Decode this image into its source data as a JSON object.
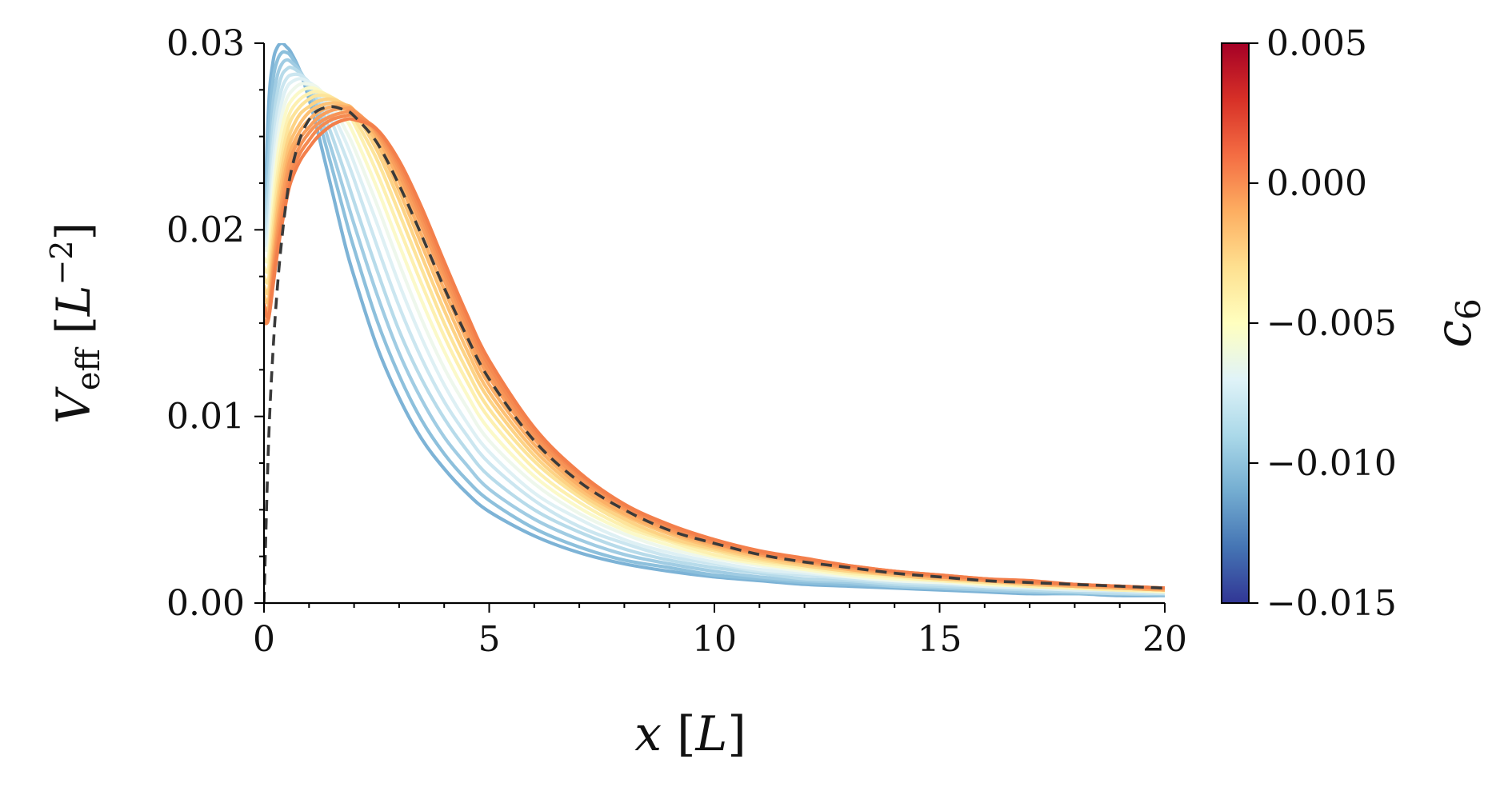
{
  "chart_data": {
    "type": "line",
    "xlabel": "x [L]",
    "ylabel": "V_eff [L^-2]",
    "xlim": [
      0,
      20
    ],
    "ylim": [
      0,
      0.03
    ],
    "x_ticks": [
      "0",
      "5",
      "10",
      "15",
      "20"
    ],
    "y_ticks": [
      "0.00",
      "0.01",
      "0.02",
      "0.03"
    ],
    "grid": false,
    "legend": "none",
    "colorbar": {
      "label": "c_6",
      "range": [
        -0.015,
        0.005
      ],
      "ticks": [
        "0.005",
        "0.000",
        "−0.005",
        "−0.010",
        "−0.015"
      ],
      "colormap": [
        "#313695",
        "#4575b4",
        "#74add1",
        "#abd9e9",
        "#e0f3f8",
        "#ffffbf",
        "#fee090",
        "#fdae61",
        "#f46d43",
        "#d73027",
        "#a50026"
      ]
    },
    "x": [
      0,
      0.1,
      0.2,
      0.3,
      0.4,
      0.5,
      0.6,
      0.8,
      1.0,
      1.2,
      1.5,
      1.8,
      2.0,
      2.5,
      3.0,
      3.5,
      4.0,
      4.5,
      5.0,
      6.0,
      7.0,
      8.0,
      9.0,
      10.0,
      11.0,
      12.0,
      13.0,
      14.0,
      15.0,
      16.0,
      17.0,
      18.0,
      19.0,
      20.0
    ],
    "series": [
      {
        "c6": -0.0095,
        "color": "#7db3d6",
        "values": [
          0.019,
          0.0265,
          0.029,
          0.0298,
          0.03,
          0.0298,
          0.0295,
          0.0285,
          0.027,
          0.0252,
          0.0222,
          0.0192,
          0.0175,
          0.0138,
          0.011,
          0.0088,
          0.0072,
          0.0059,
          0.0049,
          0.0036,
          0.0027,
          0.0021,
          0.0017,
          0.0014,
          0.0012,
          0.001,
          0.0009,
          0.0008,
          0.0007,
          0.0006,
          0.0005,
          0.0005,
          0.0004,
          0.0004
        ]
      },
      {
        "c6": -0.0089,
        "color": "#8dc0dc",
        "values": [
          0.019,
          0.025,
          0.028,
          0.0291,
          0.0295,
          0.0295,
          0.0293,
          0.0285,
          0.0274,
          0.026,
          0.0234,
          0.0207,
          0.019,
          0.0152,
          0.0122,
          0.0098,
          0.008,
          0.0066,
          0.0055,
          0.004,
          0.003,
          0.0023,
          0.0019,
          0.0015,
          0.0013,
          0.0011,
          0.001,
          0.0009,
          0.0008,
          0.0007,
          0.0006,
          0.0005,
          0.0005,
          0.0004
        ]
      },
      {
        "c6": -0.0083,
        "color": "#a0cce3",
        "values": [
          0.019,
          0.0235,
          0.0268,
          0.0283,
          0.0289,
          0.0291,
          0.029,
          0.0285,
          0.0276,
          0.0265,
          0.0243,
          0.0219,
          0.0203,
          0.0166,
          0.0134,
          0.0109,
          0.0089,
          0.0074,
          0.0061,
          0.0045,
          0.0034,
          0.0026,
          0.0021,
          0.0017,
          0.0014,
          0.0012,
          0.0011,
          0.0009,
          0.0008,
          0.0007,
          0.0006,
          0.0006,
          0.0005,
          0.0005
        ]
      },
      {
        "c6": -0.0077,
        "color": "#b7dbea",
        "values": [
          0.019,
          0.0222,
          0.0256,
          0.0274,
          0.0283,
          0.0286,
          0.0287,
          0.0284,
          0.0278,
          0.0269,
          0.0251,
          0.023,
          0.0215,
          0.0179,
          0.0146,
          0.012,
          0.0099,
          0.0082,
          0.0068,
          0.005,
          0.0038,
          0.0029,
          0.0023,
          0.0019,
          0.0016,
          0.0013,
          0.0012,
          0.001,
          0.0009,
          0.0008,
          0.0007,
          0.0006,
          0.0005,
          0.0005
        ]
      },
      {
        "c6": -0.0071,
        "color": "#cbe6f0",
        "values": [
          0.019,
          0.021,
          0.0245,
          0.0265,
          0.0276,
          0.0281,
          0.0283,
          0.0283,
          0.0279,
          0.0272,
          0.0258,
          0.024,
          0.0227,
          0.0192,
          0.0159,
          0.0131,
          0.0108,
          0.009,
          0.0075,
          0.0055,
          0.0041,
          0.0032,
          0.0025,
          0.0021,
          0.0017,
          0.0015,
          0.0013,
          0.0011,
          0.001,
          0.0009,
          0.0008,
          0.0007,
          0.0006,
          0.0005
        ]
      },
      {
        "c6": -0.0065,
        "color": "#def0f4",
        "values": [
          0.019,
          0.02,
          0.0234,
          0.0256,
          0.0269,
          0.0276,
          0.0279,
          0.0281,
          0.0279,
          0.0275,
          0.0263,
          0.0248,
          0.0236,
          0.0204,
          0.0171,
          0.0142,
          0.0117,
          0.0097,
          0.0081,
          0.0059,
          0.0045,
          0.0034,
          0.0027,
          0.0022,
          0.0018,
          0.0016,
          0.0014,
          0.0012,
          0.0011,
          0.0009,
          0.0008,
          0.0007,
          0.0007,
          0.0006
        ]
      },
      {
        "c6": -0.0059,
        "color": "#eef7ec",
        "values": [
          0.019,
          0.0192,
          0.0224,
          0.0247,
          0.0262,
          0.027,
          0.0274,
          0.0278,
          0.0278,
          0.0276,
          0.0267,
          0.0254,
          0.0244,
          0.0214,
          0.0182,
          0.0152,
          0.0126,
          0.0105,
          0.0087,
          0.0064,
          0.0048,
          0.0037,
          0.0029,
          0.0024,
          0.002,
          0.0017,
          0.0014,
          0.0012,
          0.0011,
          0.001,
          0.0009,
          0.0008,
          0.0007,
          0.0006
        ]
      },
      {
        "c6": -0.0053,
        "color": "#fbf9c9",
        "values": [
          0.0185,
          0.0185,
          0.0215,
          0.0239,
          0.0254,
          0.0264,
          0.0269,
          0.0274,
          0.0276,
          0.0275,
          0.027,
          0.026,
          0.0251,
          0.0223,
          0.0192,
          0.0162,
          0.0135,
          0.0112,
          0.0093,
          0.0068,
          0.0051,
          0.0039,
          0.0031,
          0.0025,
          0.0021,
          0.0018,
          0.0015,
          0.0013,
          0.0012,
          0.001,
          0.0009,
          0.0008,
          0.0007,
          0.0006
        ]
      },
      {
        "c6": -0.0047,
        "color": "#fdf0b0",
        "values": [
          0.018,
          0.0179,
          0.0207,
          0.023,
          0.0246,
          0.0257,
          0.0264,
          0.027,
          0.0273,
          0.0274,
          0.0271,
          0.0264,
          0.0257,
          0.0231,
          0.0201,
          0.0171,
          0.0143,
          0.0119,
          0.0099,
          0.0072,
          0.0054,
          0.0041,
          0.0033,
          0.0026,
          0.0022,
          0.0019,
          0.0016,
          0.0014,
          0.0012,
          0.0011,
          0.0009,
          0.0008,
          0.0007,
          0.0007
        ]
      },
      {
        "c6": -0.0041,
        "color": "#fde49a",
        "values": [
          0.0175,
          0.0173,
          0.02,
          0.0223,
          0.0239,
          0.0251,
          0.0259,
          0.0266,
          0.027,
          0.0272,
          0.0271,
          0.0266,
          0.026,
          0.0238,
          0.0209,
          0.0179,
          0.015,
          0.0125,
          0.0104,
          0.0076,
          0.0057,
          0.0043,
          0.0034,
          0.0028,
          0.0023,
          0.002,
          0.0017,
          0.0015,
          0.0013,
          0.0011,
          0.001,
          0.0009,
          0.0008,
          0.0007
        ]
      },
      {
        "c6": -0.0035,
        "color": "#fdd385",
        "values": [
          0.017,
          0.0167,
          0.0193,
          0.0216,
          0.0233,
          0.0245,
          0.0253,
          0.0262,
          0.0266,
          0.0269,
          0.027,
          0.0267,
          0.0263,
          0.0243,
          0.0216,
          0.0186,
          0.0157,
          0.0131,
          0.0109,
          0.0079,
          0.0059,
          0.0045,
          0.0035,
          0.0029,
          0.0024,
          0.002,
          0.0017,
          0.0015,
          0.0013,
          0.0012,
          0.001,
          0.0009,
          0.0008,
          0.0007
        ]
      },
      {
        "c6": -0.0029,
        "color": "#fdc174",
        "values": [
          0.0165,
          0.0162,
          0.0187,
          0.021,
          0.0227,
          0.0239,
          0.0248,
          0.0257,
          0.0263,
          0.0266,
          0.0268,
          0.0267,
          0.0264,
          0.0247,
          0.0221,
          0.0192,
          0.0163,
          0.0136,
          0.0113,
          0.0082,
          0.0061,
          0.0047,
          0.0037,
          0.003,
          0.0025,
          0.0021,
          0.0018,
          0.0015,
          0.0013,
          0.0012,
          0.001,
          0.0009,
          0.0008,
          0.0007
        ]
      },
      {
        "c6": -0.0023,
        "color": "#fcb066",
        "values": [
          0.016,
          0.0158,
          0.0182,
          0.0204,
          0.0221,
          0.0234,
          0.0243,
          0.0253,
          0.0259,
          0.0263,
          0.0266,
          0.0266,
          0.0264,
          0.025,
          0.0226,
          0.0197,
          0.0168,
          0.0141,
          0.0117,
          0.0085,
          0.0063,
          0.0048,
          0.0038,
          0.0031,
          0.0026,
          0.0022,
          0.0018,
          0.0016,
          0.0014,
          0.0012,
          0.0011,
          0.0009,
          0.0008,
          0.0007
        ]
      },
      {
        "c6": -0.0017,
        "color": "#f99f5d",
        "values": [
          0.0155,
          0.0155,
          0.0178,
          0.0199,
          0.0216,
          0.0229,
          0.0239,
          0.0249,
          0.0255,
          0.026,
          0.0264,
          0.0265,
          0.0264,
          0.0252,
          0.023,
          0.0202,
          0.0173,
          0.0145,
          0.0121,
          0.0088,
          0.0065,
          0.005,
          0.0039,
          0.0032,
          0.0026,
          0.0022,
          0.0019,
          0.0016,
          0.0014,
          0.0012,
          0.0011,
          0.001,
          0.0009,
          0.0008
        ]
      },
      {
        "c6": -0.0011,
        "color": "#f79457",
        "values": [
          0.0152,
          0.0153,
          0.0175,
          0.0195,
          0.0211,
          0.0224,
          0.0234,
          0.0245,
          0.0252,
          0.0257,
          0.0261,
          0.0263,
          0.0263,
          0.0253,
          0.0233,
          0.0206,
          0.0177,
          0.0149,
          0.0124,
          0.009,
          0.0067,
          0.0051,
          0.004,
          0.0032,
          0.0027,
          0.0023,
          0.0019,
          0.0017,
          0.0014,
          0.0013,
          0.0011,
          0.001,
          0.0009,
          0.0008
        ]
      },
      {
        "c6": -0.0005,
        "color": "#f58a51",
        "values": [
          0.015,
          0.0152,
          0.0172,
          0.0191,
          0.0207,
          0.022,
          0.023,
          0.0241,
          0.0248,
          0.0254,
          0.0259,
          0.0261,
          0.0261,
          0.0254,
          0.0235,
          0.0209,
          0.018,
          0.0152,
          0.0127,
          0.0092,
          0.0069,
          0.0052,
          0.0041,
          0.0033,
          0.0027,
          0.0023,
          0.002,
          0.0017,
          0.0015,
          0.0013,
          0.0011,
          0.001,
          0.0009,
          0.0008
        ]
      },
      {
        "c6": 0.0,
        "color": "#f37f4b",
        "values": [
          0.016,
          0.0153,
          0.017,
          0.0188,
          0.0203,
          0.0216,
          0.0226,
          0.0237,
          0.0244,
          0.025,
          0.0256,
          0.0259,
          0.0259,
          0.0254,
          0.0237,
          0.0212,
          0.0183,
          0.0155,
          0.013,
          0.0094,
          0.007,
          0.0053,
          0.0042,
          0.0034,
          0.0028,
          0.0024,
          0.002,
          0.0017,
          0.0015,
          0.0013,
          0.0012,
          0.001,
          0.0009,
          0.0008
        ]
      }
    ],
    "reference": {
      "style": "dashed",
      "color": "#3a3a3a",
      "values": [
        0.0,
        0.0085,
        0.0135,
        0.017,
        0.0196,
        0.0216,
        0.0231,
        0.0249,
        0.0259,
        0.0264,
        0.0266,
        0.0264,
        0.0261,
        0.0247,
        0.0224,
        0.0197,
        0.0169,
        0.0143,
        0.012,
        0.0087,
        0.0065,
        0.005,
        0.0039,
        0.0032,
        0.0026,
        0.0022,
        0.0019,
        0.0016,
        0.0014,
        0.0012,
        0.0011,
        0.001,
        0.0009,
        0.0008
      ]
    }
  }
}
